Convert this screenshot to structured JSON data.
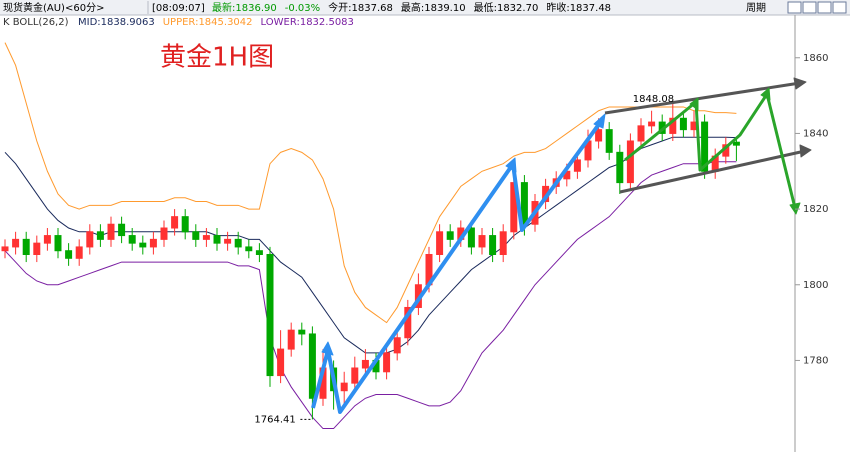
{
  "header": {
    "symbol": "现货黄金(AU)<60分>",
    "time": "[08:09:07]",
    "fields": [
      "最新:1836.90",
      "-0.03%",
      "今开:1837.68",
      "最高:1839.10",
      "最低:1832.70",
      "昨收:1837.48"
    ],
    "period": "周期"
  },
  "chart_data": {
    "type": "candlestick",
    "title": "黄金1H图",
    "indicator": "K  BOLL(26,2)",
    "indicator_values": [
      "MID:1838.9063",
      "UPPER:1845.3042",
      "LOWER:1832.5083"
    ],
    "up_color": "#ff3232",
    "down_color": "#00a800",
    "open": [
      1809,
      1810,
      1812,
      1808,
      1811,
      1813,
      1809,
      1807,
      1810,
      1814,
      1812,
      1816,
      1813,
      1811,
      1810,
      1812,
      1815,
      1818,
      1814,
      1812,
      1813,
      1811,
      1812,
      1810,
      1809,
      1808,
      1776,
      1783,
      1788,
      1787,
      1770,
      1778,
      1772,
      1774,
      1778,
      1780,
      1777,
      1782,
      1786,
      1794,
      1800,
      1808,
      1814,
      1812,
      1815,
      1810,
      1813,
      1808,
      1814,
      1827,
      1816,
      1822,
      1826,
      1828,
      1830,
      1833,
      1838,
      1841,
      1835,
      1827,
      1838,
      1842,
      1843,
      1840,
      1844,
      1841,
      1843,
      1830,
      1834,
      1837.68
    ],
    "high": [
      1812,
      1814,
      1814,
      1813,
      1815,
      1815,
      1811,
      1812,
      1816,
      1816,
      1818,
      1818,
      1815,
      1813,
      1814,
      1817,
      1820,
      1820,
      1816,
      1815,
      1815,
      1814,
      1814,
      1812,
      1811,
      1810,
      1788,
      1790,
      1790,
      1789,
      1783,
      1780,
      1777,
      1781,
      1783,
      1782,
      1784,
      1788,
      1796,
      1803,
      1810,
      1816,
      1816,
      1817,
      1817,
      1815,
      1815,
      1816,
      1830,
      1829,
      1824,
      1828,
      1830,
      1832,
      1835,
      1841,
      1844,
      1843,
      1837,
      1840,
      1844,
      1846,
      1845,
      1848.08,
      1846,
      1846,
      1845,
      1836,
      1839,
      1839.1
    ],
    "low": [
      1807,
      1808,
      1806,
      1806,
      1809,
      1807,
      1805,
      1805,
      1808,
      1810,
      1810,
      1811,
      1809,
      1808,
      1808,
      1810,
      1813,
      1812,
      1810,
      1810,
      1809,
      1809,
      1808,
      1807,
      1806,
      1773,
      1774,
      1781,
      1784,
      1764.41,
      1768,
      1767,
      1768,
      1772,
      1776,
      1775,
      1775,
      1780,
      1784,
      1792,
      1798,
      1806,
      1810,
      1810,
      1808,
      1808,
      1806,
      1806,
      1812,
      1813,
      1814,
      1820,
      1824,
      1826,
      1828,
      1831,
      1836,
      1833,
      1824,
      1825,
      1836,
      1840,
      1838,
      1838,
      1839,
      1839,
      1828,
      1828,
      1832,
      1832.7
    ],
    "close": [
      1810,
      1812,
      1808,
      1811,
      1813,
      1809,
      1807,
      1810,
      1814,
      1812,
      1816,
      1813,
      1811,
      1810,
      1812,
      1815,
      1818,
      1814,
      1812,
      1813,
      1811,
      1812,
      1810,
      1809,
      1808,
      1776,
      1783,
      1788,
      1787,
      1770,
      1778,
      1772,
      1774,
      1778,
      1780,
      1777,
      1782,
      1786,
      1794,
      1800,
      1808,
      1814,
      1812,
      1815,
      1810,
      1813,
      1808,
      1814,
      1827,
      1816,
      1822,
      1826,
      1828,
      1830,
      1833,
      1838,
      1841,
      1835,
      1827,
      1838,
      1842,
      1843,
      1840,
      1844,
      1841,
      1843,
      1830,
      1834,
      1837,
      1836.9
    ],
    "series": [
      {
        "color": "#ff9a2e",
        "values": [
          1864,
          1858,
          1848,
          1838,
          1830,
          1824,
          1821,
          1820,
          1821,
          1821,
          1821,
          1822,
          1822,
          1822,
          1822,
          1822,
          1823,
          1823,
          1822,
          1822,
          1821,
          1821,
          1821,
          1820,
          1820,
          1832,
          1835,
          1836,
          1835,
          1833,
          1828,
          1820,
          1805,
          1798,
          1794,
          1792,
          1790,
          1794,
          1800,
          1806,
          1812,
          1818,
          1822,
          1826,
          1828,
          1830,
          1831,
          1832,
          1834,
          1835,
          1835,
          1836,
          1838,
          1840,
          1842,
          1844,
          1846,
          1847,
          1847,
          1847,
          1847,
          1847,
          1847,
          1847,
          1847,
          1846,
          1846,
          1845.5,
          1845.5,
          1845.3042
        ]
      },
      {
        "color": "#1a2a5c",
        "values": [
          1835,
          1832,
          1828,
          1824,
          1820,
          1817,
          1815,
          1814,
          1814,
          1813,
          1814,
          1814,
          1814,
          1814,
          1814,
          1814,
          1814,
          1814,
          1814,
          1814,
          1813,
          1813,
          1813,
          1812,
          1812,
          1809,
          1806,
          1804,
          1802,
          1798,
          1794,
          1790,
          1786,
          1784,
          1782,
          1782,
          1782,
          1783,
          1785,
          1788,
          1792,
          1795,
          1798,
          1801,
          1804,
          1806,
          1808,
          1810,
          1813,
          1815,
          1817,
          1819,
          1821,
          1823,
          1825,
          1827,
          1829,
          1831,
          1832,
          1834,
          1836,
          1837,
          1838,
          1839,
          1839,
          1839,
          1839,
          1839,
          1839,
          1838.9063
        ]
      },
      {
        "color": "#7a1fa2",
        "values": [
          1809,
          1806,
          1803,
          1801,
          1800,
          1800,
          1801,
          1802,
          1803,
          1804,
          1805,
          1806,
          1806,
          1806,
          1806,
          1806,
          1806,
          1806,
          1806,
          1806,
          1806,
          1806,
          1805,
          1805,
          1804,
          1786,
          1778,
          1773,
          1769,
          1765,
          1762,
          1762,
          1765,
          1768,
          1770,
          1771,
          1771,
          1771,
          1770,
          1769,
          1768,
          1768,
          1769,
          1772,
          1777,
          1782,
          1785,
          1788,
          1792,
          1796,
          1800,
          1803,
          1806,
          1809,
          1812,
          1814,
          1816,
          1818,
          1821,
          1824,
          1827,
          1829,
          1830,
          1831,
          1832,
          1832,
          1832,
          1832.5,
          1832.5,
          1832.5083
        ]
      }
    ],
    "ylim": [
      1755.8,
      1871.3
    ],
    "yticks": [
      1780,
      1800,
      1820,
      1840,
      1860
    ],
    "annotations": [
      "1848.08",
      "1764.41"
    ]
  }
}
